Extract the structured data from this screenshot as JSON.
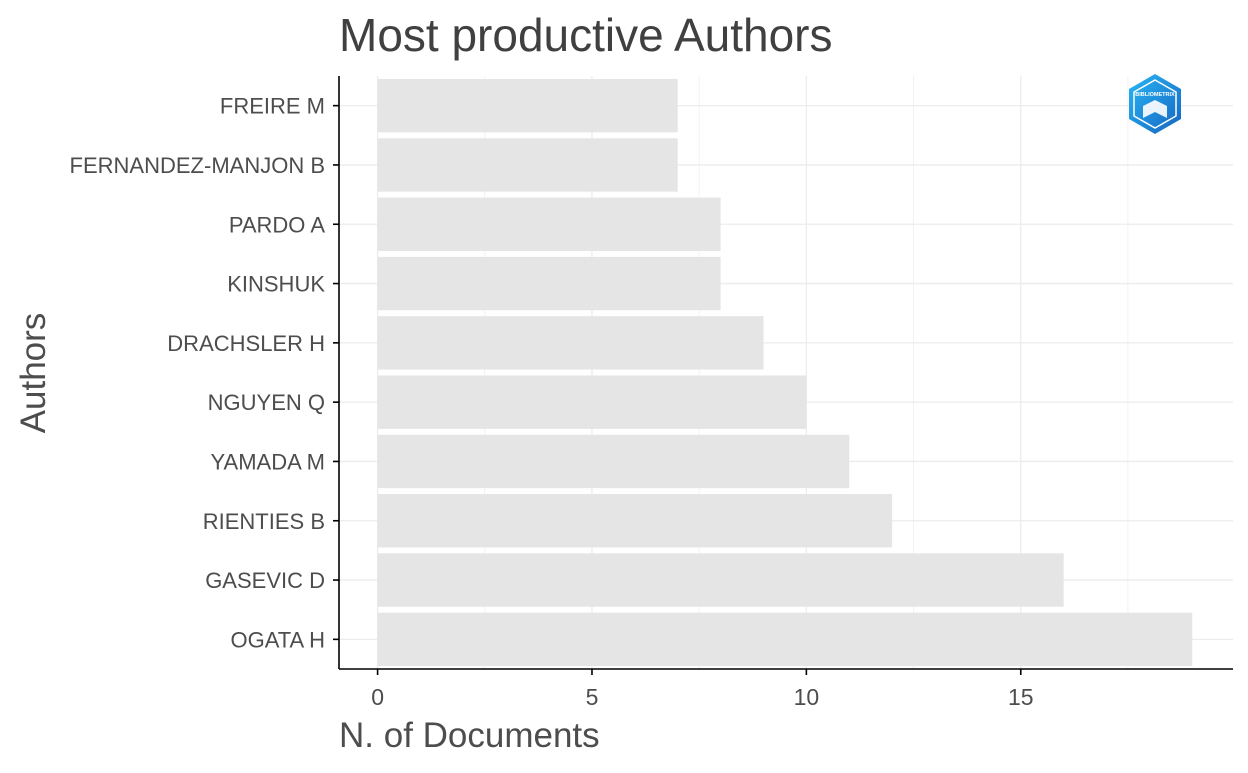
{
  "chart_data": {
    "type": "bar",
    "orientation": "horizontal",
    "title": "Most productive Authors",
    "xlabel": "N. of Documents",
    "ylabel": "Authors",
    "categories": [
      "FREIRE M",
      "FERNANDEZ-MANJON B",
      "PARDO A",
      "KINSHUK",
      "DRACHSLER H",
      "NGUYEN Q",
      "YAMADA M",
      "RIENTIES B",
      "GASEVIC D",
      "OGATA H"
    ],
    "values": [
      7,
      7,
      8,
      8,
      9,
      10,
      11,
      12,
      16,
      19
    ],
    "xlim": [
      -0.9,
      19.95
    ],
    "xticks": [
      0,
      5,
      10,
      15
    ],
    "grid": true,
    "legend": "none",
    "logo_position": "top-right"
  },
  "logo": {
    "name": "bibliometrix-logo",
    "text": "BIBLIOMETRIX"
  },
  "colors": {
    "bar": "#e5e5e5",
    "grid": "#ececec",
    "axis": "#000000",
    "text": "#4d4d4d",
    "title": "#404040",
    "logo_dark": "#1565c0",
    "logo_light": "#29b6f6"
  }
}
